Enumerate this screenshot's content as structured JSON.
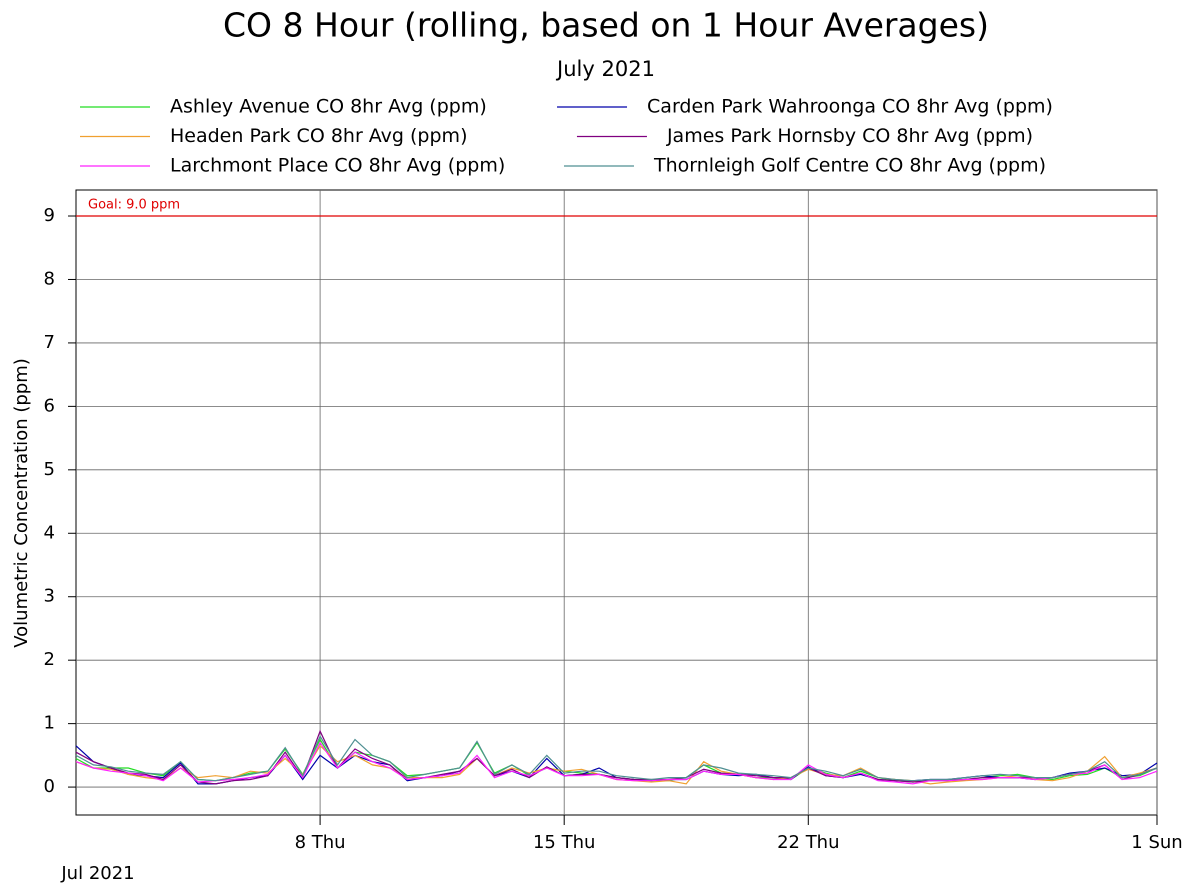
{
  "chart_data": {
    "type": "line",
    "title": "CO 8 Hour (rolling, based on 1 Hour Averages)",
    "subtitle": "July 2021",
    "ylabel": "Volumetric Concentration (ppm)",
    "xlabel": "Jul 2021",
    "xlim": [
      1,
      32
    ],
    "xticks": [
      {
        "value": 8,
        "label": "8 Thu"
      },
      {
        "value": 15,
        "label": "15 Thu"
      },
      {
        "value": 22,
        "label": "22 Thu"
      },
      {
        "value": 32,
        "label": "1 Sun"
      }
    ],
    "ylim": [
      -0.44,
      9.41
    ],
    "yticks": [
      0,
      1,
      2,
      3,
      4,
      5,
      6,
      7,
      8,
      9
    ],
    "grid": true,
    "goal": {
      "value": 9,
      "label": "Goal: 9.0 ppm",
      "color": "#e00000"
    },
    "x": [
      1,
      1.5,
      2,
      2.5,
      3,
      3.5,
      4,
      4.5,
      5,
      5.5,
      6,
      6.5,
      7,
      7.5,
      8,
      8.5,
      9,
      9.5,
      10,
      10.5,
      11,
      11.5,
      12,
      12.5,
      13,
      13.5,
      14,
      14.5,
      15,
      15.5,
      16,
      16.5,
      17,
      17.5,
      18,
      18.5,
      19,
      19.5,
      20,
      20.5,
      21,
      21.5,
      22,
      22.5,
      23,
      23.5,
      24,
      24.5,
      25,
      25.5,
      26,
      26.5,
      27,
      27.5,
      28,
      28.5,
      29,
      29.5,
      30,
      30.5,
      31,
      31.5,
      32
    ],
    "series": [
      {
        "name": "Ashley Avenue CO 8hr Avg (ppm)",
        "color": "#22dd22",
        "values": [
          0.45,
          0.3,
          0.3,
          0.3,
          0.22,
          0.18,
          0.4,
          0.12,
          0.1,
          0.15,
          0.22,
          0.25,
          0.6,
          0.2,
          0.75,
          0.3,
          0.55,
          0.5,
          0.4,
          0.18,
          0.2,
          0.25,
          0.3,
          0.7,
          0.22,
          0.35,
          0.18,
          0.3,
          0.25,
          0.22,
          0.2,
          0.15,
          0.12,
          0.1,
          0.1,
          0.15,
          0.35,
          0.22,
          0.2,
          0.15,
          0.15,
          0.12,
          0.3,
          0.22,
          0.15,
          0.25,
          0.15,
          0.1,
          0.08,
          0.1,
          0.12,
          0.12,
          0.15,
          0.18,
          0.2,
          0.15,
          0.12,
          0.18,
          0.2,
          0.3,
          0.15,
          0.18,
          0.3
        ]
      },
      {
        "name": "Carden Park Wahroonga CO 8hr Avg (ppm)",
        "color": "#0000aa",
        "values": [
          0.65,
          0.4,
          0.3,
          0.2,
          0.18,
          0.15,
          0.38,
          0.05,
          0.05,
          0.1,
          0.15,
          0.18,
          0.5,
          0.12,
          0.5,
          0.3,
          0.5,
          0.4,
          0.35,
          0.1,
          0.15,
          0.18,
          0.25,
          0.45,
          0.18,
          0.25,
          0.15,
          0.45,
          0.18,
          0.2,
          0.3,
          0.15,
          0.12,
          0.1,
          0.12,
          0.12,
          0.25,
          0.2,
          0.18,
          0.2,
          0.15,
          0.12,
          0.32,
          0.18,
          0.15,
          0.2,
          0.12,
          0.1,
          0.1,
          0.12,
          0.12,
          0.15,
          0.18,
          0.15,
          0.15,
          0.12,
          0.15,
          0.22,
          0.25,
          0.3,
          0.18,
          0.2,
          0.38
        ]
      },
      {
        "name": "Headen Park CO 8hr Avg (ppm)",
        "color": "#f0a030",
        "values": [
          0.4,
          0.3,
          0.28,
          0.2,
          0.15,
          0.12,
          0.3,
          0.15,
          0.18,
          0.15,
          0.25,
          0.22,
          0.45,
          0.2,
          0.65,
          0.4,
          0.5,
          0.35,
          0.3,
          0.15,
          0.15,
          0.15,
          0.2,
          0.45,
          0.18,
          0.3,
          0.22,
          0.3,
          0.25,
          0.28,
          0.2,
          0.12,
          0.1,
          0.08,
          0.1,
          0.05,
          0.4,
          0.25,
          0.2,
          0.15,
          0.12,
          0.15,
          0.28,
          0.2,
          0.18,
          0.3,
          0.15,
          0.12,
          0.1,
          0.05,
          0.08,
          0.1,
          0.12,
          0.15,
          0.18,
          0.12,
          0.1,
          0.15,
          0.25,
          0.48,
          0.15,
          0.22,
          0.3
        ]
      },
      {
        "name": "James Park Hornsby CO 8hr Avg (ppm)",
        "color": "#800080",
        "values": [
          0.55,
          0.4,
          0.3,
          0.22,
          0.2,
          0.12,
          0.35,
          0.08,
          0.05,
          0.1,
          0.12,
          0.18,
          0.55,
          0.15,
          0.88,
          0.3,
          0.6,
          0.45,
          0.35,
          0.12,
          0.15,
          0.2,
          0.25,
          0.45,
          0.18,
          0.28,
          0.15,
          0.32,
          0.18,
          0.2,
          0.2,
          0.15,
          0.12,
          0.12,
          0.12,
          0.15,
          0.28,
          0.22,
          0.2,
          0.18,
          0.15,
          0.15,
          0.3,
          0.18,
          0.15,
          0.22,
          0.12,
          0.1,
          0.08,
          0.1,
          0.1,
          0.12,
          0.15,
          0.15,
          0.15,
          0.15,
          0.15,
          0.2,
          0.25,
          0.35,
          0.12,
          0.2,
          0.3
        ]
      },
      {
        "name": "Larchmont Place CO 8hr Avg (ppm)",
        "color": "#ff22ff",
        "values": [
          0.4,
          0.3,
          0.25,
          0.22,
          0.18,
          0.1,
          0.3,
          0.08,
          0.1,
          0.12,
          0.15,
          0.2,
          0.5,
          0.15,
          0.7,
          0.3,
          0.55,
          0.4,
          0.3,
          0.12,
          0.15,
          0.18,
          0.22,
          0.5,
          0.15,
          0.25,
          0.18,
          0.3,
          0.18,
          0.18,
          0.2,
          0.12,
          0.1,
          0.1,
          0.12,
          0.12,
          0.25,
          0.2,
          0.2,
          0.15,
          0.12,
          0.12,
          0.35,
          0.2,
          0.15,
          0.22,
          0.1,
          0.08,
          0.05,
          0.1,
          0.1,
          0.12,
          0.12,
          0.15,
          0.15,
          0.12,
          0.15,
          0.2,
          0.22,
          0.35,
          0.12,
          0.15,
          0.25
        ]
      },
      {
        "name": "Thornleigh Golf Centre CO 8hr Avg (ppm)",
        "color": "#4f8f92",
        "values": [
          0.5,
          0.35,
          0.32,
          0.25,
          0.22,
          0.2,
          0.4,
          0.12,
          0.1,
          0.15,
          0.2,
          0.25,
          0.62,
          0.18,
          0.8,
          0.35,
          0.75,
          0.5,
          0.4,
          0.15,
          0.2,
          0.25,
          0.3,
          0.72,
          0.2,
          0.35,
          0.2,
          0.5,
          0.22,
          0.25,
          0.25,
          0.18,
          0.15,
          0.12,
          0.15,
          0.15,
          0.35,
          0.3,
          0.22,
          0.2,
          0.18,
          0.15,
          0.3,
          0.25,
          0.18,
          0.28,
          0.15,
          0.12,
          0.1,
          0.12,
          0.12,
          0.15,
          0.18,
          0.2,
          0.18,
          0.15,
          0.15,
          0.2,
          0.25,
          0.4,
          0.15,
          0.2,
          0.3
        ]
      }
    ]
  }
}
